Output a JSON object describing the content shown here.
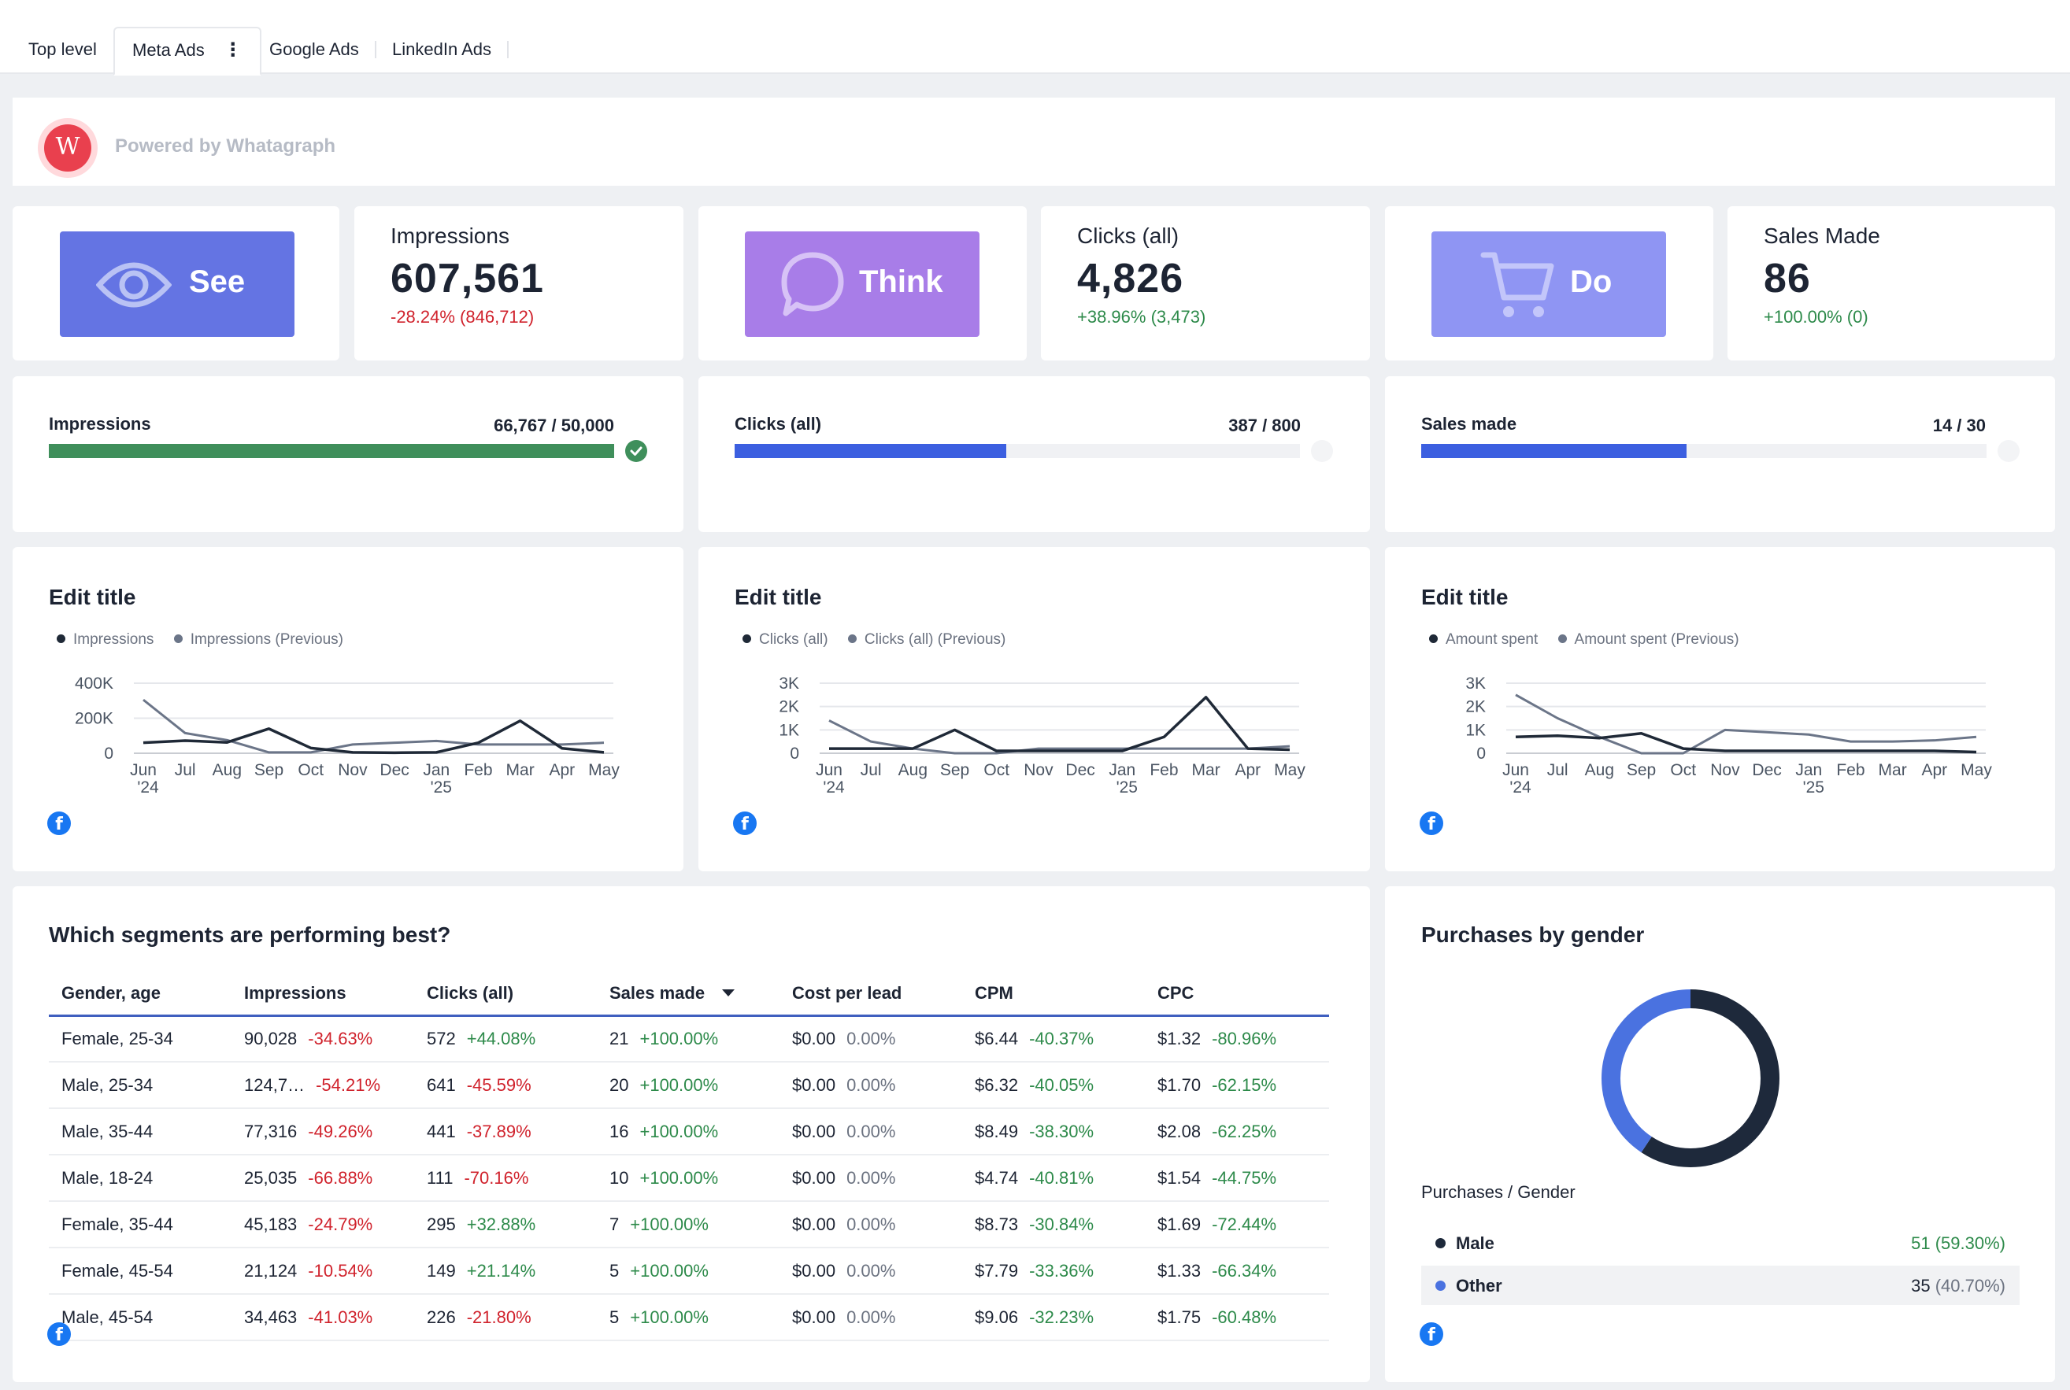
{
  "tabs": [
    {
      "label": "Top level"
    },
    {
      "label": "Meta Ads",
      "menu": "⋮"
    },
    {
      "label": "Google Ads"
    },
    {
      "label": "LinkedIn Ads"
    }
  ],
  "branding": {
    "logo_letter": "W",
    "text": "Powered by Whatagraph"
  },
  "stages": [
    {
      "label": "See",
      "icon": "eye-icon",
      "color": "#6474e3"
    },
    {
      "label": "Think",
      "icon": "speech-bubble-icon",
      "color": "#a87de8"
    },
    {
      "label": "Do",
      "icon": "shopping-cart-icon",
      "color": "#8f95f3"
    }
  ],
  "kpis": [
    {
      "title": "Impressions",
      "value": "607,561",
      "change": "-28.24% (846,712)",
      "trend": "neg"
    },
    {
      "title": "Clicks (all)",
      "value": "4,826",
      "change": "+38.96% (3,473)",
      "trend": "pos"
    },
    {
      "title": "Sales Made",
      "value": "86",
      "change": "+100.00% (0)",
      "trend": "pos"
    }
  ],
  "goals": [
    {
      "label": "Impressions",
      "value": "66,767 / 50,000",
      "progress": 1.0,
      "color": "#3f8f5b",
      "achieved": true
    },
    {
      "label": "Clicks (all)",
      "value": "387 / 800",
      "progress": 0.48,
      "color": "#3c5fe0",
      "achieved": false
    },
    {
      "label": "Sales made",
      "value": "14 / 30",
      "progress": 0.47,
      "color": "#3c5fe0",
      "achieved": false
    }
  ],
  "chart_data": [
    {
      "type": "line",
      "title": "Edit title",
      "categories": [
        "Jun\n'24",
        "Jul",
        "Aug",
        "Sep",
        "Oct",
        "Nov",
        "Dec",
        "Jan\n'25",
        "Feb",
        "Mar",
        "Apr",
        "May"
      ],
      "yticks": [
        {
          "v": 0,
          "l": "0"
        },
        {
          "v": 200000,
          "l": "200K"
        },
        {
          "v": 400000,
          "l": "400K"
        }
      ],
      "ylim": [
        0,
        400000
      ],
      "series": [
        {
          "name": "Impressions",
          "color": "#1f2937",
          "values": [
            60000,
            72000,
            62000,
            140000,
            30000,
            5000,
            3000,
            5000,
            60000,
            185000,
            28000,
            5000
          ]
        },
        {
          "name": "Impressions (Previous)",
          "color": "#6b7588",
          "values": [
            305000,
            115000,
            75000,
            5000,
            5000,
            50000,
            60000,
            70000,
            50000,
            50000,
            50000,
            60000
          ]
        }
      ]
    },
    {
      "type": "line",
      "title": "Edit title",
      "categories": [
        "Jun\n'24",
        "Jul",
        "Aug",
        "Sep",
        "Oct",
        "Nov",
        "Dec",
        "Jan\n'25",
        "Feb",
        "Mar",
        "Apr",
        "May"
      ],
      "yticks": [
        {
          "v": 0,
          "l": "0"
        },
        {
          "v": 1000,
          "l": "1K"
        },
        {
          "v": 2000,
          "l": "2K"
        },
        {
          "v": 3000,
          "l": "3K"
        }
      ],
      "ylim": [
        0,
        3000
      ],
      "series": [
        {
          "name": "Clicks (all)",
          "color": "#1f2937",
          "values": [
            200,
            200,
            200,
            1000,
            100,
            100,
            100,
            100,
            700,
            2400,
            200,
            150
          ]
        },
        {
          "name": "Clicks (all) (Previous)",
          "color": "#6b7588",
          "values": [
            1400,
            500,
            200,
            0,
            0,
            200,
            200,
            200,
            200,
            200,
            200,
            300
          ]
        }
      ]
    },
    {
      "type": "line",
      "title": "Edit title",
      "categories": [
        "Jun\n'24",
        "Jul",
        "Aug",
        "Sep",
        "Oct",
        "Nov",
        "Dec",
        "Jan\n'25",
        "Feb",
        "Mar",
        "Apr",
        "May"
      ],
      "yticks": [
        {
          "v": 0,
          "l": "0"
        },
        {
          "v": 1000,
          "l": "1K"
        },
        {
          "v": 2000,
          "l": "2K"
        },
        {
          "v": 3000,
          "l": "3K"
        }
      ],
      "ylim": [
        0,
        3000
      ],
      "series": [
        {
          "name": "Amount spent",
          "color": "#1f2937",
          "values": [
            700,
            750,
            650,
            850,
            200,
            100,
            100,
            100,
            100,
            100,
            100,
            50
          ]
        },
        {
          "name": "Amount spent (Previous)",
          "color": "#6b7588",
          "values": [
            2500,
            1500,
            700,
            0,
            0,
            1000,
            900,
            800,
            500,
            500,
            550,
            700
          ]
        }
      ]
    },
    {
      "type": "pie",
      "title": "Purchases by gender",
      "subtitle": "Purchases / Gender",
      "slices": [
        {
          "name": "Male",
          "value": 51,
          "display": "51",
          "pct": "(59.30%)",
          "color": "#1e293b"
        },
        {
          "name": "Other",
          "value": 35,
          "display": "35",
          "pct": "(40.70%)",
          "color": "#4a72e0"
        }
      ]
    }
  ],
  "segments": {
    "title": "Which segments are performing best?",
    "headers": [
      "Gender, age",
      "Impressions",
      "Clicks (all)",
      "Sales made",
      "Cost per lead",
      "CPM",
      "CPC"
    ],
    "rows": [
      {
        "segment": "Female, 25-34",
        "cells": [
          [
            "90,028",
            "-34.63%",
            "neg"
          ],
          [
            "572",
            "+44.08%",
            "pos"
          ],
          [
            "21",
            "+100.00%",
            "pos"
          ],
          [
            "$0.00",
            "0.00%",
            "muted"
          ],
          [
            "$6.44",
            "-40.37%",
            "pos"
          ],
          [
            "$1.32",
            "-80.96%",
            "pos"
          ]
        ]
      },
      {
        "segment": "Male, 25-34",
        "cells": [
          [
            "124,7…",
            "-54.21%",
            "neg"
          ],
          [
            "641",
            "-45.59%",
            "neg"
          ],
          [
            "20",
            "+100.00%",
            "pos"
          ],
          [
            "$0.00",
            "0.00%",
            "muted"
          ],
          [
            "$6.32",
            "-40.05%",
            "pos"
          ],
          [
            "$1.70",
            "-62.15%",
            "pos"
          ]
        ]
      },
      {
        "segment": "Male, 35-44",
        "cells": [
          [
            "77,316",
            "-49.26%",
            "neg"
          ],
          [
            "441",
            "-37.89%",
            "neg"
          ],
          [
            "16",
            "+100.00%",
            "pos"
          ],
          [
            "$0.00",
            "0.00%",
            "muted"
          ],
          [
            "$8.49",
            "-38.30%",
            "pos"
          ],
          [
            "$2.08",
            "-62.25%",
            "pos"
          ]
        ]
      },
      {
        "segment": "Male, 18-24",
        "cells": [
          [
            "25,035",
            "-66.88%",
            "neg"
          ],
          [
            "111",
            "-70.16%",
            "neg"
          ],
          [
            "10",
            "+100.00%",
            "pos"
          ],
          [
            "$0.00",
            "0.00%",
            "muted"
          ],
          [
            "$4.74",
            "-40.81%",
            "pos"
          ],
          [
            "$1.54",
            "-44.75%",
            "pos"
          ]
        ]
      },
      {
        "segment": "Female, 35-44",
        "cells": [
          [
            "45,183",
            "-24.79%",
            "neg"
          ],
          [
            "295",
            "+32.88%",
            "pos"
          ],
          [
            "7",
            "+100.00%",
            "pos"
          ],
          [
            "$0.00",
            "0.00%",
            "muted"
          ],
          [
            "$8.73",
            "-30.84%",
            "pos"
          ],
          [
            "$1.69",
            "-72.44%",
            "pos"
          ]
        ]
      },
      {
        "segment": "Female, 45-54",
        "cells": [
          [
            "21,124",
            "-10.54%",
            "neg"
          ],
          [
            "149",
            "+21.14%",
            "pos"
          ],
          [
            "5",
            "+100.00%",
            "pos"
          ],
          [
            "$0.00",
            "0.00%",
            "muted"
          ],
          [
            "$7.79",
            "-33.36%",
            "pos"
          ],
          [
            "$1.33",
            "-66.34%",
            "pos"
          ]
        ]
      },
      {
        "segment": "Male, 45-54",
        "cells": [
          [
            "34,463",
            "-41.03%",
            "neg"
          ],
          [
            "226",
            "-21.80%",
            "neg"
          ],
          [
            "5",
            "+100.00%",
            "pos"
          ],
          [
            "$0.00",
            "0.00%",
            "muted"
          ],
          [
            "$9.06",
            "-32.23%",
            "pos"
          ],
          [
            "$1.75",
            "-60.48%",
            "pos"
          ]
        ]
      }
    ]
  },
  "source_icon": {
    "name": "facebook-icon",
    "glyph": "f"
  }
}
